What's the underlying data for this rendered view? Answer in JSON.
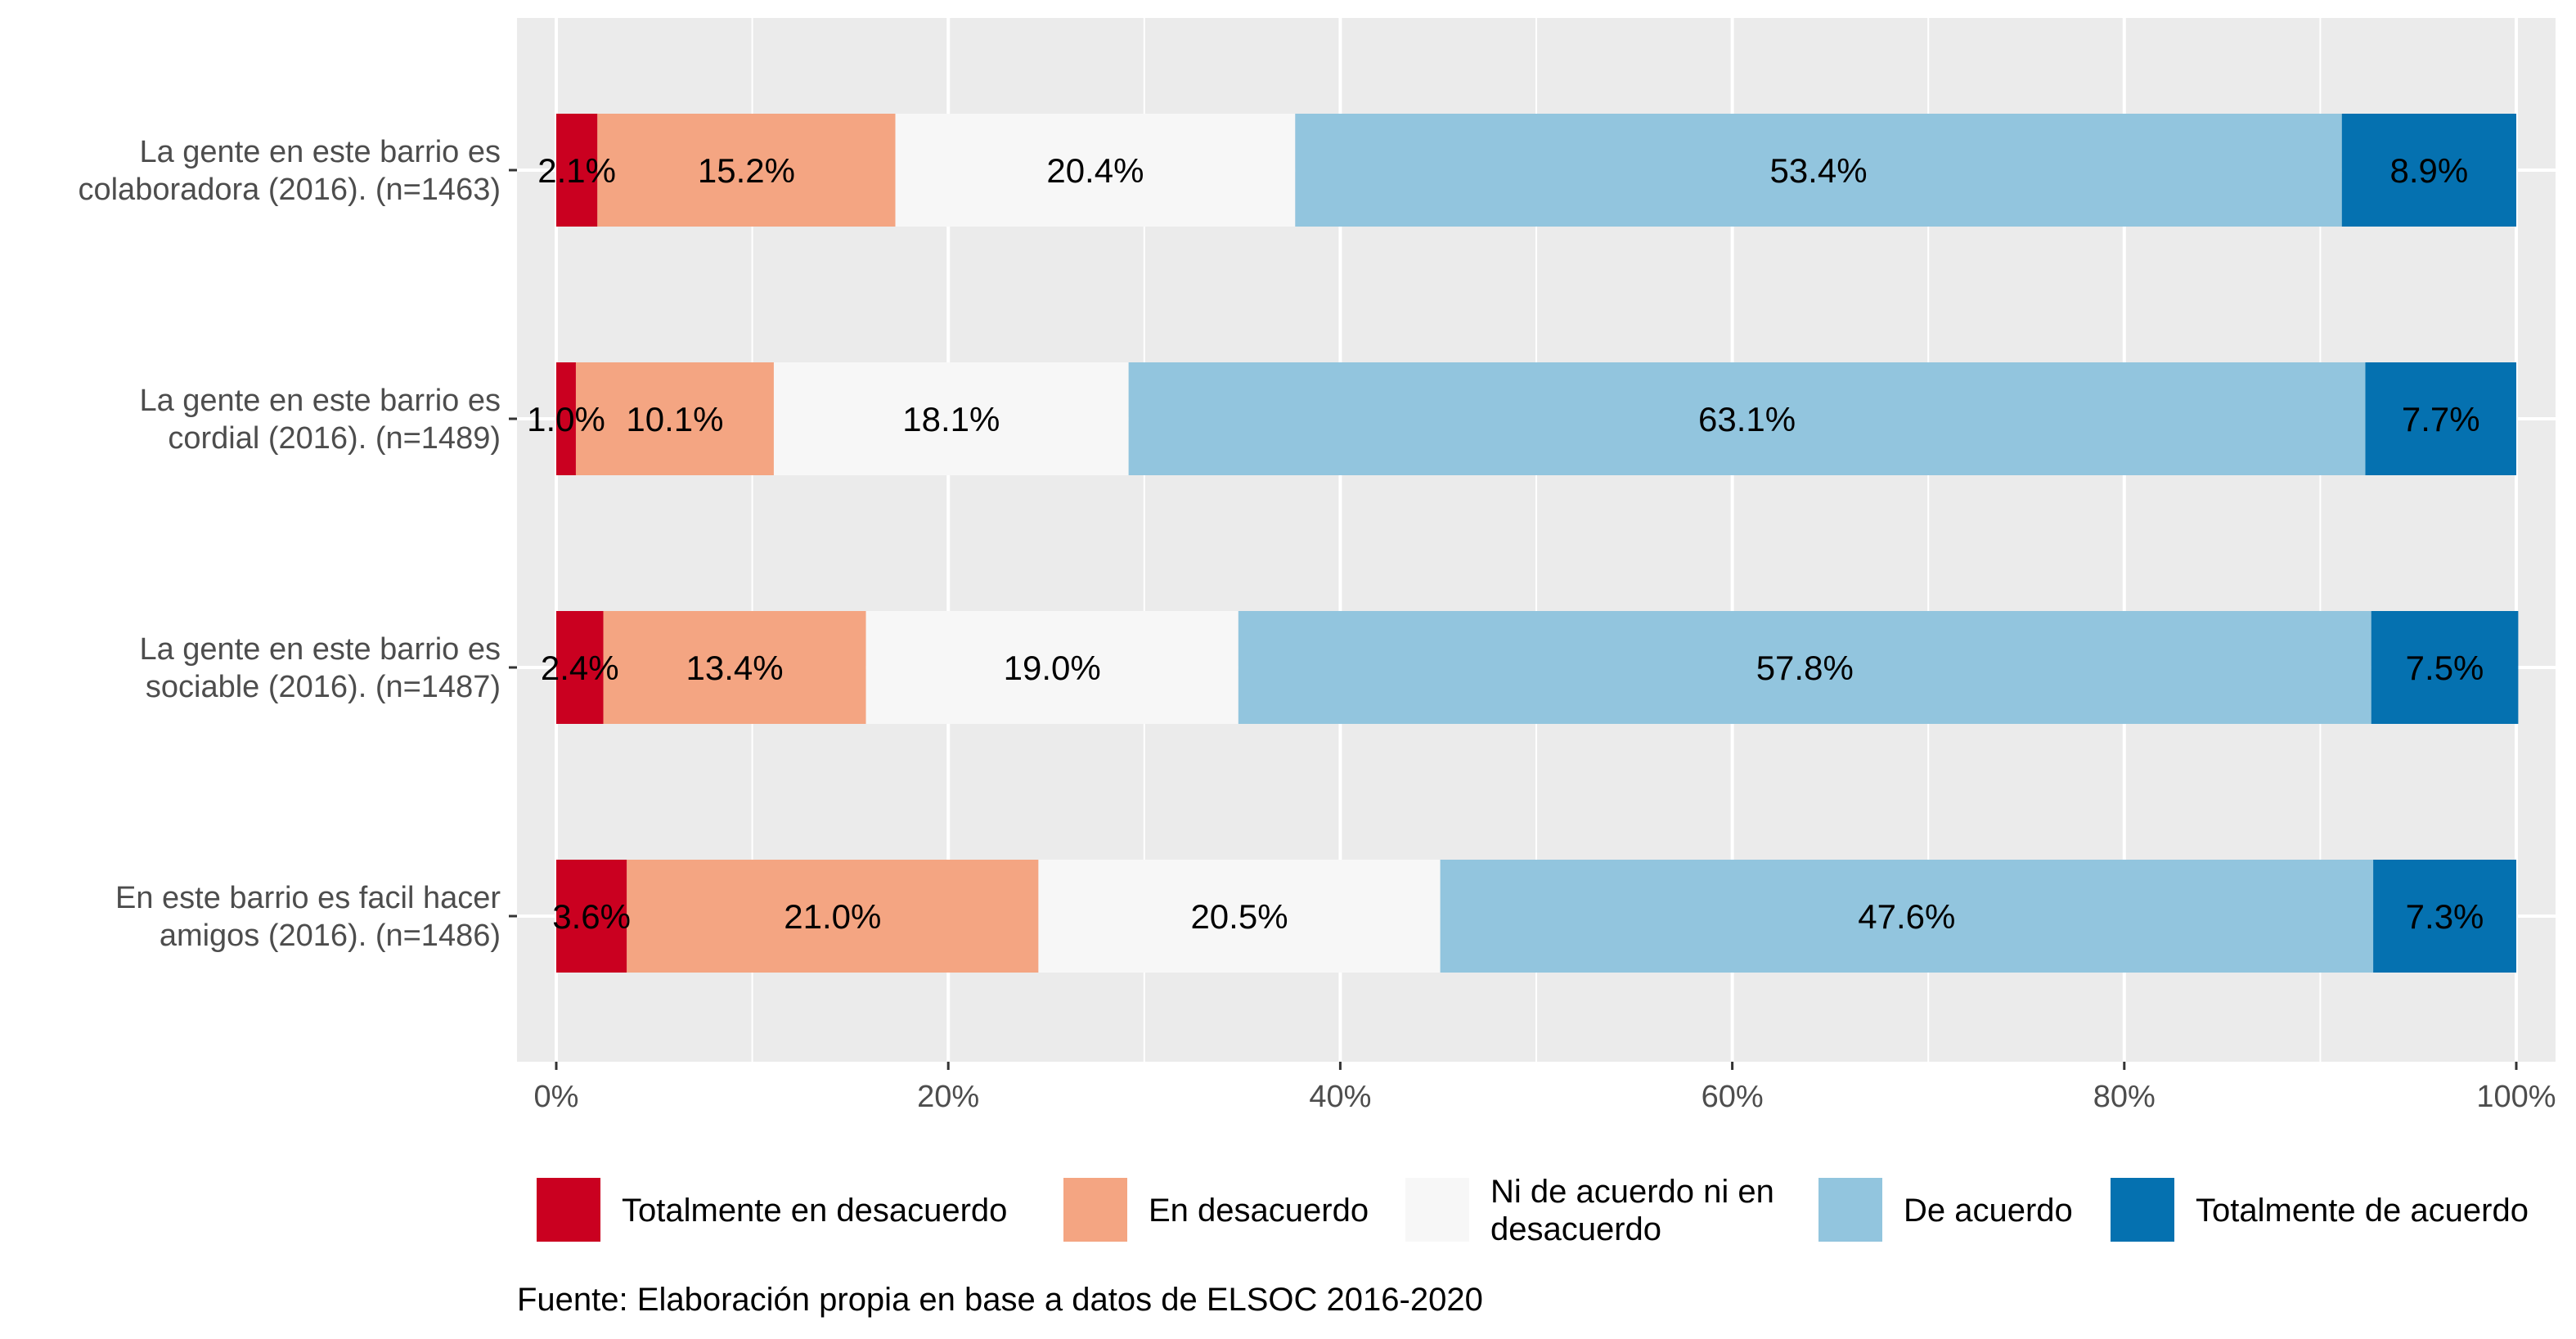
{
  "chart_data": {
    "type": "bar",
    "orientation": "horizontal",
    "stacked": true,
    "percent_scale": true,
    "categories": [
      [
        "La gente en este barrio es",
        "colaboradora (2016). (n=1463)"
      ],
      [
        "La gente en este barrio es",
        "cordial (2016). (n=1489)"
      ],
      [
        "La gente en este barrio es",
        "sociable (2016). (n=1487)"
      ],
      [
        "En este barrio es facil hacer",
        "amigos (2016). (n=1486)"
      ]
    ],
    "series": [
      {
        "name": "Totalmente en desacuerdo",
        "legend_lines": [
          "Totalmente en desacuerdo"
        ],
        "color": "#ca0020",
        "values": [
          2.1,
          1.0,
          2.4,
          3.6
        ],
        "labels": [
          "2.1%",
          "1.0%",
          "2.4%",
          "3.6%"
        ]
      },
      {
        "name": "En desacuerdo",
        "legend_lines": [
          "En desacuerdo"
        ],
        "color": "#f4a582",
        "values": [
          15.2,
          10.1,
          13.4,
          21.0
        ],
        "labels": [
          "15.2%",
          "10.1%",
          "13.4%",
          "21.0%"
        ]
      },
      {
        "name": "Ni de acuerdo ni en desacuerdo",
        "legend_lines": [
          "Ni de acuerdo ni en",
          "desacuerdo"
        ],
        "color": "#f7f7f7",
        "values": [
          20.4,
          18.1,
          19.0,
          20.5
        ],
        "labels": [
          "20.4%",
          "18.1%",
          "19.0%",
          "20.5%"
        ]
      },
      {
        "name": "De acuerdo",
        "legend_lines": [
          "De acuerdo"
        ],
        "color": "#92c5de",
        "values": [
          53.4,
          63.1,
          57.8,
          47.6
        ],
        "labels": [
          "53.4%",
          "63.1%",
          "57.8%",
          "47.6%"
        ]
      },
      {
        "name": "Totalmente de acuerdo",
        "legend_lines": [
          "Totalmente de acuerdo"
        ],
        "color": "#0571b0",
        "values": [
          8.9,
          7.7,
          7.5,
          7.3
        ],
        "labels": [
          "8.9%",
          "7.7%",
          "7.5%",
          "7.3%"
        ]
      }
    ],
    "xlim": [
      0,
      100
    ],
    "x_ticks": [
      0,
      20,
      40,
      60,
      80,
      100
    ],
    "x_tick_labels": [
      "0%",
      "20%",
      "40%",
      "60%",
      "80%",
      "100%"
    ],
    "title": "",
    "xlabel": "",
    "ylabel": "",
    "grid": true,
    "panel_background": "#ebebeb",
    "legend_position": "bottom",
    "caption": "Fuente: Elaboración propia en base a datos de ELSOC 2016-2020"
  }
}
